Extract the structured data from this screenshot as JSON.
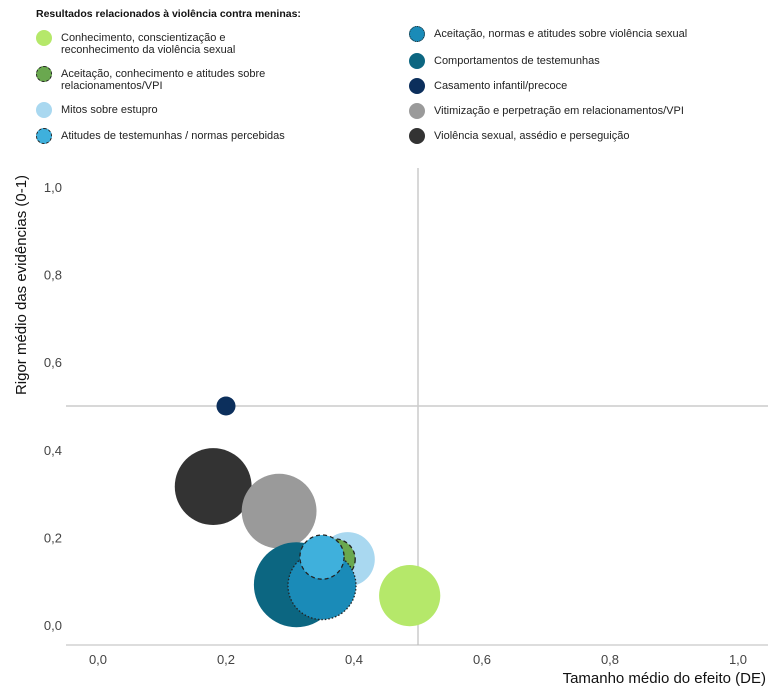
{
  "legend_title": "Resultados relacionados à violência contra meninas:",
  "chart_data": {
    "type": "scatter",
    "xlabel": "Tamanho médio do efeito (DE)",
    "ylabel": "Rigor médio das evidências (0-1)",
    "xlim": [
      -0.05,
      1.05
    ],
    "ylim": [
      -0.05,
      1.05
    ],
    "x_ticks": [
      "0,0",
      "0,2",
      "0,4",
      "0,6",
      "0,8",
      "1,0"
    ],
    "y_ticks": [
      "0,0",
      "0,2",
      "0,4",
      "0,6",
      "0,8",
      "1,0"
    ],
    "reference_lines": {
      "x": 0.5,
      "y": 0.5
    },
    "series": [
      {
        "name": "Conhecimento, conscientização e reconhecimento da violência sexual",
        "color": "#b5e86a",
        "border": "none",
        "x": 0.487,
        "y": 0.067,
        "size": 0.9
      },
      {
        "name": "Aceitação, conhecimento e atitudes sobre relacionamentos/VPI",
        "color": "#6aa84f",
        "border": "dashed",
        "x": 0.37,
        "y": 0.15,
        "size": 0.6
      },
      {
        "name": "Mitos sobre estupro",
        "color": "#a9d8f0",
        "border": "none",
        "x": 0.39,
        "y": 0.15,
        "size": 0.8
      },
      {
        "name": "Atitudes de testemunhas / normas percebidas",
        "color": "#3fb0dc",
        "border": "dashed",
        "x": 0.35,
        "y": 0.155,
        "size": 0.65
      },
      {
        "name": "Aceitação, normas e atitudes sobre violência sexual",
        "color": "#1a8bb8",
        "border": "dotted",
        "x": 0.35,
        "y": 0.09,
        "size": 1.0
      },
      {
        "name": "Comportamentos de testemunhas",
        "color": "#0c6681",
        "border": "none",
        "x": 0.31,
        "y": 0.092,
        "size": 1.25
      },
      {
        "name": "Casamento infantil/precoce",
        "color": "#0c2f5c",
        "border": "none",
        "x": 0.2,
        "y": 0.5,
        "size": 0.28
      },
      {
        "name": "Vitimização e perpetração em relacionamentos/VPI",
        "color": "#9a9a9a",
        "border": "none",
        "x": 0.283,
        "y": 0.26,
        "size": 1.1
      },
      {
        "name": "Violência sexual, assédio e perseguição",
        "color": "#333333",
        "border": "none",
        "x": 0.18,
        "y": 0.316,
        "size": 1.13
      }
    ]
  }
}
